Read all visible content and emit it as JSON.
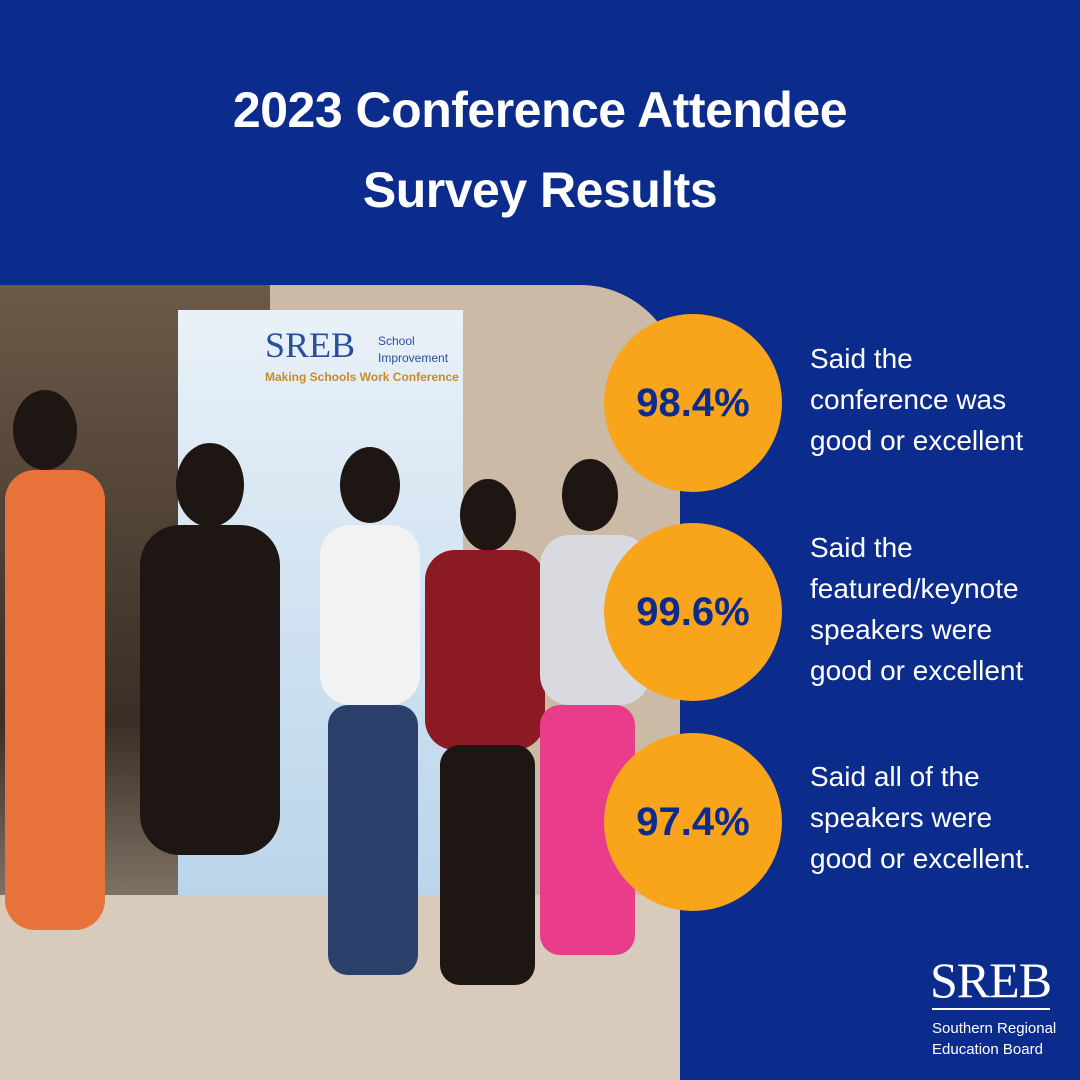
{
  "header": {
    "title_lines": [
      "2023 Conference Attendee",
      "Survey Results"
    ]
  },
  "photo": {
    "sign_logo": "SREB",
    "sign_unit": [
      "School",
      "Improvement"
    ],
    "sign_event": "Making Schools Work Conference"
  },
  "stats": [
    {
      "value": "98.4%",
      "lines": [
        "Said the",
        "conference was",
        "good or excellent"
      ]
    },
    {
      "value": "99.6%",
      "lines": [
        "Said the",
        "featured/keynote",
        "speakers were",
        "good or excellent"
      ]
    },
    {
      "value": "97.4%",
      "lines": [
        "Said all of the",
        "speakers were",
        "good or excellent."
      ]
    }
  ],
  "footer": {
    "logo": "SREB",
    "org_lines": [
      "Southern Regional",
      "Education Board"
    ]
  }
}
